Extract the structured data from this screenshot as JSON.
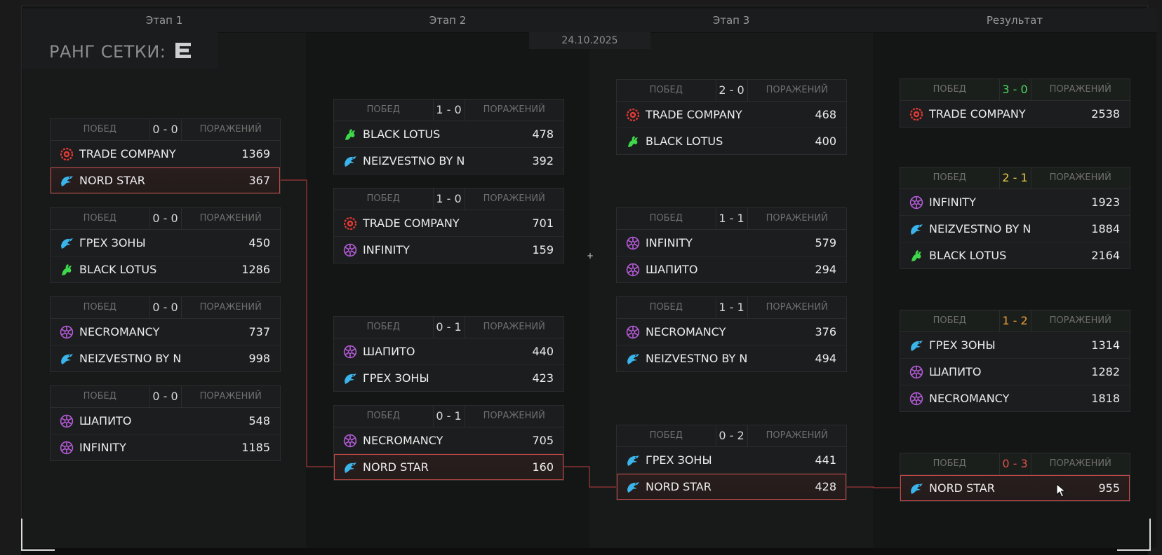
{
  "stages": [
    "Этап 1",
    "Этап 2",
    "Этап 3",
    "Результат"
  ],
  "date": "24.10.2025",
  "rank_label": "РАНГ СЕТКИ:",
  "labels": {
    "wins": "ПОБЕД",
    "losses": "ПОРАЖЕНИЙ"
  },
  "colors": {
    "highlight_border": "#c64a48",
    "score_green": "#4cd860",
    "score_yellow": "#e6c84a",
    "score_orange": "#ef9d3a",
    "score_red": "#e0514a",
    "connector": "#c0403e"
  },
  "icons": {
    "trade": "red-gear-emblem-icon",
    "eagle": "blue-eagle-icon",
    "lotus": "green-dragon-icon",
    "purple": "purple-star-emblem-icon"
  },
  "matches": [
    {
      "id": "s1m1",
      "score": "0 - 0",
      "rows": [
        {
          "name": "TRADE COMPANY",
          "score": "1369",
          "icon": "trade"
        },
        {
          "name": "NORD STAR",
          "score": "367",
          "icon": "eagle",
          "hl": true
        }
      ]
    },
    {
      "id": "s1m2",
      "score": "0 - 0",
      "rows": [
        {
          "name": "ГРЕХ ЗОНЫ",
          "score": "450",
          "icon": "eagle"
        },
        {
          "name": "BLACK LOTUS",
          "score": "1286",
          "icon": "lotus"
        }
      ]
    },
    {
      "id": "s1m3",
      "score": "0 - 0",
      "rows": [
        {
          "name": "NECROMANCY",
          "score": "737",
          "icon": "purple"
        },
        {
          "name": "NEIZVESTNO BY N",
          "score": "998",
          "icon": "eagle"
        }
      ]
    },
    {
      "id": "s1m4",
      "score": "0 - 0",
      "rows": [
        {
          "name": "ШАПИТО",
          "score": "548",
          "icon": "purple"
        },
        {
          "name": "INFINITY",
          "score": "1185",
          "icon": "purple"
        }
      ]
    },
    {
      "id": "s2m1",
      "score": "1 - 0",
      "rows": [
        {
          "name": "BLACK LOTUS",
          "score": "478",
          "icon": "lotus"
        },
        {
          "name": "NEIZVESTNO BY N",
          "score": "392",
          "icon": "eagle"
        }
      ]
    },
    {
      "id": "s2m2",
      "score": "1 - 0",
      "rows": [
        {
          "name": "TRADE COMPANY",
          "score": "701",
          "icon": "trade"
        },
        {
          "name": "INFINITY",
          "score": "159",
          "icon": "purple"
        }
      ]
    },
    {
      "id": "s2m3",
      "score": "0 - 1",
      "rows": [
        {
          "name": "ШАПИТО",
          "score": "440",
          "icon": "purple"
        },
        {
          "name": "ГРЕХ ЗОНЫ",
          "score": "423",
          "icon": "eagle"
        }
      ]
    },
    {
      "id": "s2m4",
      "score": "0 - 1",
      "rows": [
        {
          "name": "NECROMANCY",
          "score": "705",
          "icon": "purple"
        },
        {
          "name": "NORD STAR",
          "score": "160",
          "icon": "eagle",
          "hl": true
        }
      ]
    },
    {
      "id": "s3m1",
      "score": "2 - 0",
      "rows": [
        {
          "name": "TRADE COMPANY",
          "score": "468",
          "icon": "trade"
        },
        {
          "name": "BLACK LOTUS",
          "score": "400",
          "icon": "lotus"
        }
      ]
    },
    {
      "id": "s3m2",
      "score": "1 - 1",
      "rows": [
        {
          "name": "INFINITY",
          "score": "579",
          "icon": "purple"
        },
        {
          "name": "ШАПИТО",
          "score": "294",
          "icon": "purple"
        }
      ]
    },
    {
      "id": "s3m3",
      "score": "1 - 1",
      "rows": [
        {
          "name": "NECROMANCY",
          "score": "376",
          "icon": "purple"
        },
        {
          "name": "NEIZVESTNO BY N",
          "score": "494",
          "icon": "eagle"
        }
      ]
    },
    {
      "id": "s3m4",
      "score": "0 - 2",
      "rows": [
        {
          "name": "ГРЕХ ЗОНЫ",
          "score": "441",
          "icon": "eagle"
        },
        {
          "name": "NORD STAR",
          "score": "428",
          "icon": "eagle",
          "hl": true
        }
      ]
    },
    {
      "id": "r1",
      "score": "3 - 0",
      "scoreColor": "score_green",
      "rows": [
        {
          "name": "TRADE COMPANY",
          "score": "2538",
          "icon": "trade"
        }
      ]
    },
    {
      "id": "r2",
      "score": "2 - 1",
      "scoreColor": "score_yellow",
      "rows": [
        {
          "name": "INFINITY",
          "score": "1923",
          "icon": "purple"
        },
        {
          "name": "NEIZVESTNO BY N",
          "score": "1884",
          "icon": "eagle"
        },
        {
          "name": "BLACK LOTUS",
          "score": "2164",
          "icon": "lotus"
        }
      ]
    },
    {
      "id": "r3",
      "score": "1 - 2",
      "scoreColor": "score_orange",
      "rows": [
        {
          "name": "ГРЕХ ЗОНЫ",
          "score": "1314",
          "icon": "eagle"
        },
        {
          "name": "ШАПИТО",
          "score": "1282",
          "icon": "purple"
        },
        {
          "name": "NECROMANCY",
          "score": "1818",
          "icon": "purple"
        }
      ]
    },
    {
      "id": "r4",
      "score": "0 - 3",
      "scoreColor": "score_red",
      "rows": [
        {
          "name": "NORD STAR",
          "score": "955",
          "icon": "eagle",
          "hl": true
        }
      ]
    }
  ]
}
